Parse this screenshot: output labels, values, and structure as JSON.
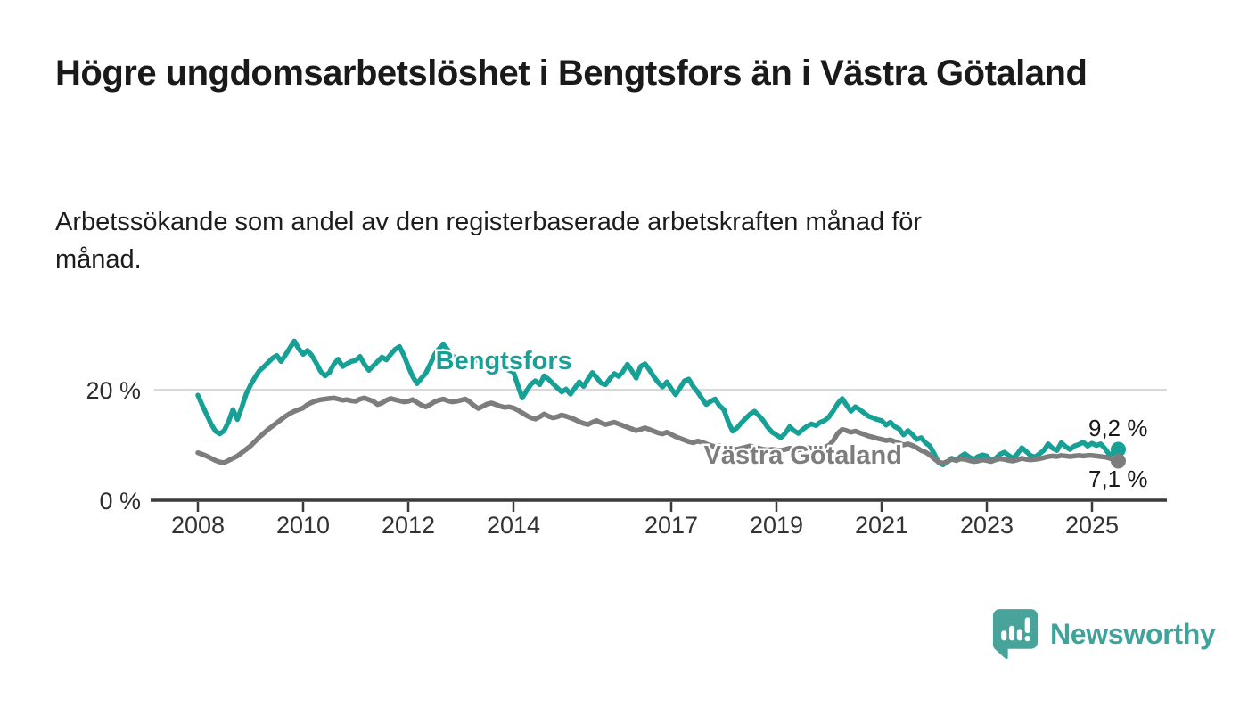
{
  "header": {
    "title": "Högre ungdomsarbetslöshet i Bengtsfors än i Västra Götaland",
    "subtitle": "Arbetssökande som andel av den registerbaserade arbetskraften månad för månad."
  },
  "chart_data": {
    "type": "line",
    "title": "Högre ungdomsarbetslöshet i Bengtsfors än i Västra Götaland",
    "xlabel": "",
    "ylabel": "",
    "unit": "%",
    "x_start_year": 2008,
    "x_points_per_year": 12,
    "x_end": "2025-07",
    "ylim": [
      0,
      30
    ],
    "grid": "horizontal-20-only",
    "legend_position": "inline-labels",
    "x_tick_years": [
      2008,
      2010,
      2012,
      2014,
      2017,
      2019,
      2021,
      2023,
      2025
    ],
    "y_ticks": [
      {
        "value": 0,
        "label": "0 %"
      },
      {
        "value": 20,
        "label": "20 %"
      }
    ],
    "colors": {
      "bengtsfors": "#17a096",
      "vastra_gotaland": "#7d7d7d",
      "gridline": "#d9d9d9",
      "axis": "#3a3a3a",
      "text": "#1a1a1a"
    },
    "series": [
      {
        "name": "Bengtsfors",
        "color": "#17a096",
        "end_label": "9,2 %",
        "end_value": 9.2,
        "end_label_position": "above",
        "label_x": 2012.52,
        "label_y": 23.7,
        "values": [
          19.0,
          17.2,
          15.5,
          13.8,
          12.5,
          12.0,
          12.6,
          14.2,
          16.4,
          14.6,
          16.8,
          19.2,
          20.8,
          22.2,
          23.4,
          24.1,
          24.9,
          25.7,
          26.2,
          25.1,
          26.3,
          27.6,
          28.8,
          27.4,
          26.4,
          27.1,
          26.2,
          24.8,
          23.3,
          22.5,
          23.1,
          24.6,
          25.5,
          24.2,
          24.7,
          25.1,
          25.3,
          26.0,
          24.6,
          23.5,
          24.3,
          25.1,
          25.9,
          25.4,
          26.4,
          27.3,
          27.8,
          26.2,
          24.2,
          22.4,
          21.1,
          22.1,
          23.0,
          24.6,
          26.3,
          27.4,
          28.2,
          27.2,
          26.2,
          25.6,
          25.1,
          24.6,
          25.4,
          26.1,
          25.2,
          24.3,
          23.7,
          24.2,
          24.6,
          24.1,
          23.8,
          23.5,
          23.2,
          20.8,
          18.5,
          19.8,
          21.0,
          21.6,
          20.9,
          22.5,
          21.9,
          21.1,
          20.3,
          19.6,
          20.1,
          19.2,
          20.3,
          21.4,
          20.6,
          21.9,
          23.1,
          22.2,
          21.2,
          20.9,
          22.0,
          22.9,
          22.4,
          23.3,
          24.6,
          23.4,
          22.1,
          24.2,
          24.7,
          23.6,
          22.4,
          21.3,
          20.5,
          21.4,
          20.2,
          19.1,
          20.3,
          21.6,
          21.9,
          20.6,
          19.6,
          18.4,
          17.3,
          17.9,
          18.3,
          17.1,
          16.4,
          14.2,
          12.5,
          13.1,
          14.0,
          14.8,
          15.6,
          16.1,
          15.3,
          14.4,
          13.2,
          12.3,
          11.8,
          11.3,
          12.1,
          13.3,
          12.6,
          12.1,
          12.8,
          13.4,
          13.8,
          13.5,
          14.1,
          14.4,
          15.1,
          16.2,
          17.5,
          18.4,
          17.2,
          16.1,
          16.9,
          16.4,
          15.8,
          15.2,
          14.9,
          14.6,
          14.4,
          13.6,
          14.1,
          13.3,
          12.9,
          11.8,
          12.6,
          11.9,
          11.0,
          11.3,
          10.4,
          9.8,
          8.4,
          6.8,
          6.4,
          6.9,
          7.6,
          7.2,
          7.9,
          8.4,
          7.8,
          7.4,
          7.9,
          8.2,
          8.0,
          7.1,
          7.6,
          8.3,
          8.7,
          8.1,
          7.6,
          8.4,
          9.5,
          8.8,
          8.1,
          7.8,
          8.4,
          9.0,
          10.2,
          9.4,
          9.0,
          10.4,
          9.7,
          9.2,
          9.8,
          10.1,
          10.5,
          9.8,
          10.3,
          9.9,
          10.2,
          9.3,
          8.2,
          8.6,
          9.2
        ]
      },
      {
        "name": "Västra Götaland",
        "color": "#7d7d7d",
        "end_label": "7,1 %",
        "end_value": 7.1,
        "end_label_position": "below",
        "label_x": 2017.62,
        "label_y": 6.6,
        "values": [
          8.6,
          8.3,
          8.0,
          7.6,
          7.2,
          6.9,
          6.8,
          7.2,
          7.6,
          8.0,
          8.6,
          9.2,
          9.8,
          10.6,
          11.4,
          12.1,
          12.8,
          13.4,
          14.0,
          14.6,
          15.2,
          15.7,
          16.1,
          16.4,
          16.7,
          17.3,
          17.7,
          18.0,
          18.2,
          18.3,
          18.4,
          18.5,
          18.3,
          18.1,
          18.2,
          18.0,
          17.9,
          18.3,
          18.5,
          18.2,
          17.9,
          17.3,
          17.6,
          18.1,
          18.4,
          18.2,
          18.0,
          17.8,
          17.9,
          18.2,
          17.7,
          17.2,
          16.9,
          17.3,
          17.8,
          18.1,
          18.3,
          18.0,
          17.8,
          17.9,
          18.1,
          18.3,
          17.8,
          17.1,
          16.6,
          17.0,
          17.4,
          17.6,
          17.3,
          17.0,
          16.8,
          16.9,
          16.7,
          16.3,
          15.8,
          15.3,
          14.9,
          14.7,
          15.1,
          15.6,
          15.2,
          14.9,
          15.1,
          15.4,
          15.2,
          14.9,
          14.6,
          14.2,
          13.9,
          13.7,
          14.1,
          14.4,
          14.0,
          13.7,
          13.9,
          14.1,
          13.8,
          13.5,
          13.2,
          12.9,
          12.6,
          12.8,
          13.1,
          12.8,
          12.5,
          12.2,
          12.0,
          12.3,
          11.9,
          11.5,
          11.2,
          10.9,
          10.6,
          10.4,
          10.7,
          10.5,
          10.2,
          9.9,
          9.7,
          9.9,
          9.7,
          9.5,
          9.3,
          9.2,
          9.4,
          9.6,
          9.8,
          9.6,
          9.4,
          9.2,
          9.1,
          9.2,
          9.1,
          9.0,
          9.2,
          9.4,
          9.2,
          9.1,
          9.3,
          9.5,
          9.4,
          9.2,
          9.4,
          9.6,
          9.9,
          10.8,
          12.1,
          12.8,
          12.6,
          12.3,
          12.5,
          12.2,
          11.9,
          11.6,
          11.4,
          11.2,
          11.0,
          10.8,
          10.9,
          10.6,
          10.3,
          10.0,
          10.2,
          9.9,
          9.5,
          9.0,
          8.7,
          8.2,
          7.5,
          6.9,
          6.7,
          7.0,
          7.4,
          7.2,
          7.5,
          7.4,
          7.2,
          7.0,
          7.1,
          7.3,
          7.2,
          7.0,
          7.3,
          7.5,
          7.4,
          7.2,
          7.1,
          7.3,
          7.6,
          7.4,
          7.3,
          7.4,
          7.5,
          7.7,
          7.9,
          8.0,
          7.9,
          8.1,
          8.0,
          7.9,
          8.0,
          8.1,
          8.0,
          8.1,
          8.1,
          8.0,
          7.9,
          7.8,
          7.6,
          7.3,
          7.1
        ]
      }
    ]
  },
  "footer": {
    "brand": "Newsworthy",
    "brand_color": "#3ea39b",
    "logo_icon": "bar-chart-speech-bubble-icon"
  }
}
